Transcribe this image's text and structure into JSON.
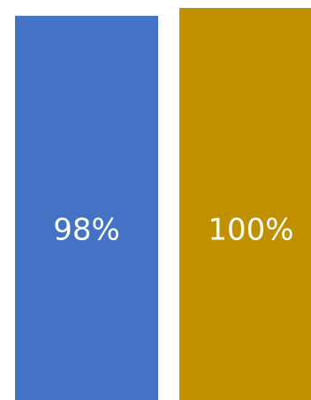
{
  "chart_data": {
    "type": "bar",
    "categories": [
      "",
      ""
    ],
    "values": [
      98,
      100
    ],
    "data_labels": [
      "98%",
      "100%"
    ],
    "title": "",
    "xlabel": "",
    "ylabel": "",
    "ylim": [
      0,
      100
    ],
    "grid": false,
    "legend": "none",
    "colors": [
      "#4472C4",
      "#C09000"
    ]
  }
}
